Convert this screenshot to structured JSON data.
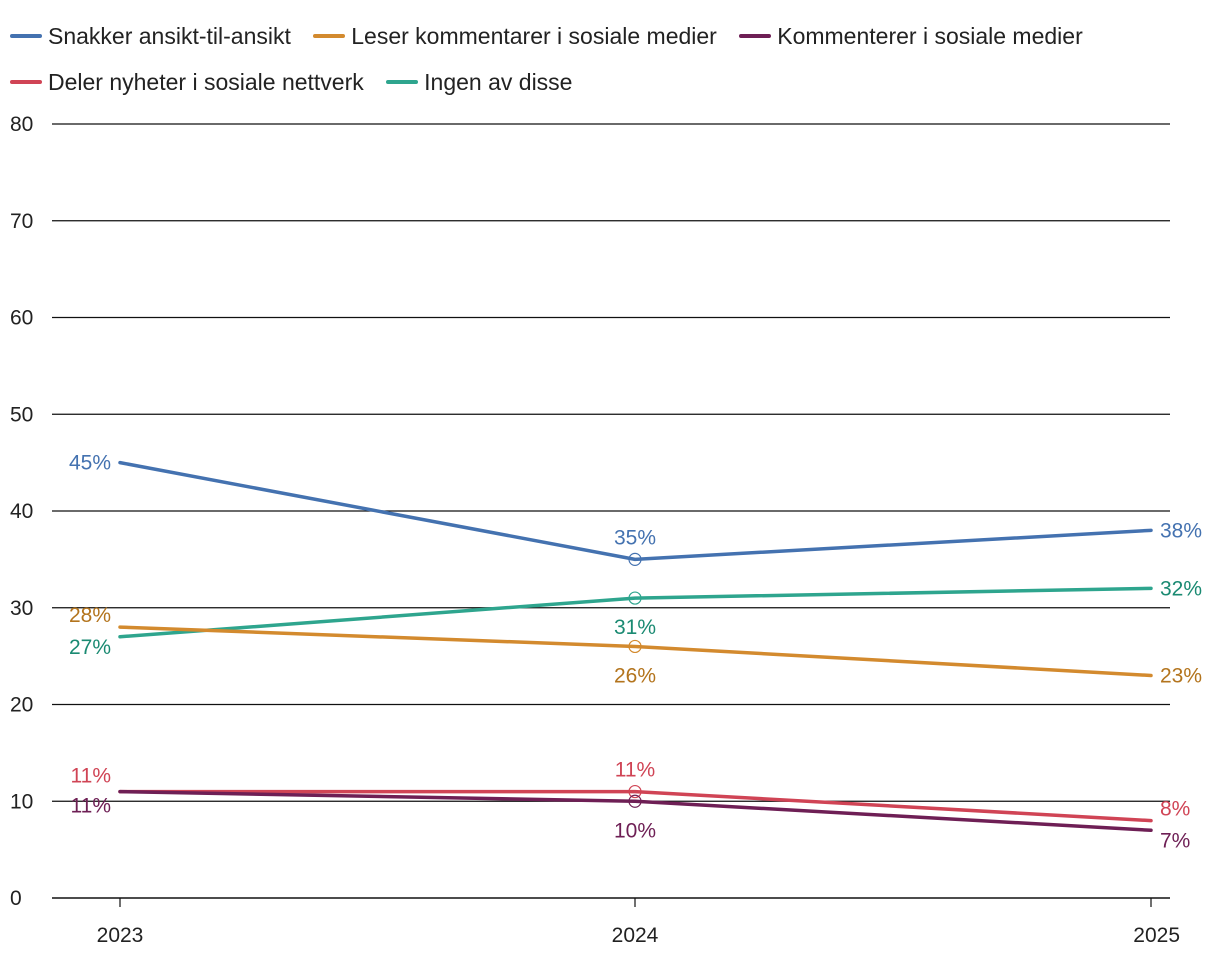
{
  "chart_data": {
    "type": "line",
    "title": "",
    "xlabel": "",
    "ylabel": "",
    "categories": [
      "2023",
      "2024",
      "2025"
    ],
    "ylim": [
      0,
      80
    ],
    "yticks": [
      "0",
      "10",
      "20",
      "30",
      "40",
      "50",
      "60",
      "70",
      "80"
    ],
    "grid": true,
    "legend_position": "top",
    "series": [
      {
        "name": "Snakker ansikt-til-ansikt",
        "color": "#4472b0",
        "label_color": "#4472b0",
        "values": [
          45,
          35,
          38
        ],
        "labels": [
          "45%",
          "35%",
          "38%"
        ]
      },
      {
        "name": "Leser kommentarer i sosiale medier",
        "color": "#d38a2e",
        "label_color": "#b3741d",
        "values": [
          28,
          26,
          23
        ],
        "labels": [
          "28%",
          "26%",
          "23%"
        ]
      },
      {
        "name": "Kommenterer i sosiale medier",
        "color": "#6e1f55",
        "label_color": "#6e1f55",
        "values": [
          11,
          10,
          7
        ],
        "labels": [
          "11%",
          "10%",
          "7%"
        ]
      },
      {
        "name": "Deler nyheter i sosiale nettverk",
        "color": "#d04455",
        "label_color": "#d04455",
        "values": [
          11,
          11,
          8
        ],
        "labels": [
          "11%",
          "11%",
          "8%"
        ]
      },
      {
        "name": "Ingen av disse",
        "color": "#2ea58e",
        "label_color": "#1a8a72",
        "values": [
          27,
          31,
          32
        ],
        "labels": [
          "27%",
          "31%",
          "32%"
        ]
      }
    ]
  }
}
